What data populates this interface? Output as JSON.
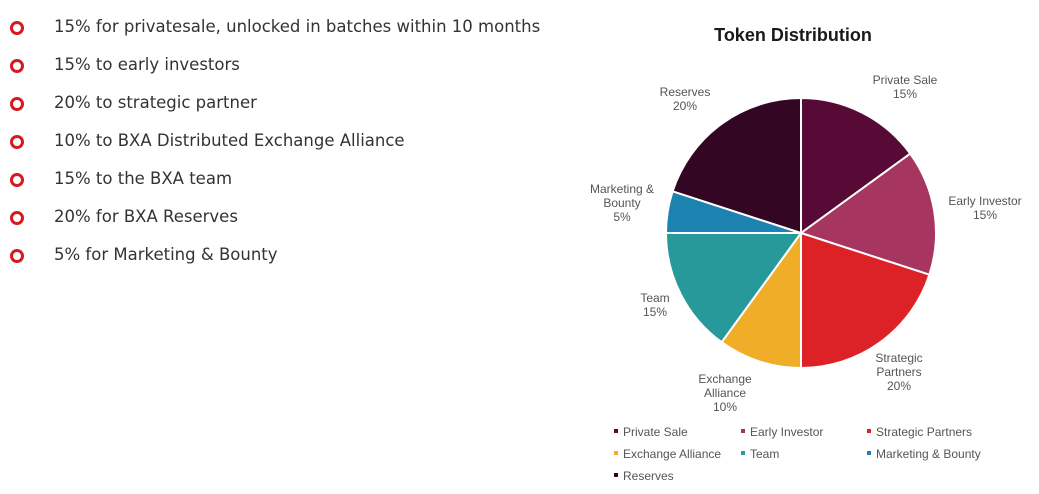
{
  "bullets": [
    "15% for privatesale, unlocked in batches within 10 months",
    "15% to early investors",
    "20% to strategic partner",
    "10% to BXA Distributed Exchange Alliance",
    "15% to the BXA team",
    "20% for BXA Reserves",
    "5% for Marketing & Bounty"
  ],
  "colors": {
    "bullet_accent": "#d71920"
  },
  "chart_data": {
    "type": "pie",
    "title": "Token Distribution",
    "unit": "%",
    "legend_position": "bottom",
    "slices": [
      {
        "name": "Private Sale",
        "value": 15,
        "color": "#560a35",
        "label_lines": [
          "Private Sale",
          "15%"
        ]
      },
      {
        "name": "Early Investor",
        "value": 15,
        "color": "#a6355f",
        "label_lines": [
          "Early Investor",
          "15%"
        ]
      },
      {
        "name": "Strategic Partners",
        "value": 20,
        "color": "#dc2127",
        "label_lines": [
          "Strategic",
          "Partners",
          "20%"
        ]
      },
      {
        "name": "Exchange Alliance",
        "value": 10,
        "color": "#f0ad28",
        "label_lines": [
          "Exchange",
          "Alliance",
          "10%"
        ]
      },
      {
        "name": "Team",
        "value": 15,
        "color": "#28999b",
        "label_lines": [
          "Team",
          "15%"
        ]
      },
      {
        "name": "Marketing & Bounty",
        "value": 5,
        "color": "#1c83b0",
        "label_lines": [
          "Marketing &",
          "Bounty",
          "5%"
        ]
      },
      {
        "name": "Reserves",
        "value": 20,
        "color": "#330624",
        "label_lines": [
          "Reserves",
          "20%"
        ]
      }
    ]
  }
}
